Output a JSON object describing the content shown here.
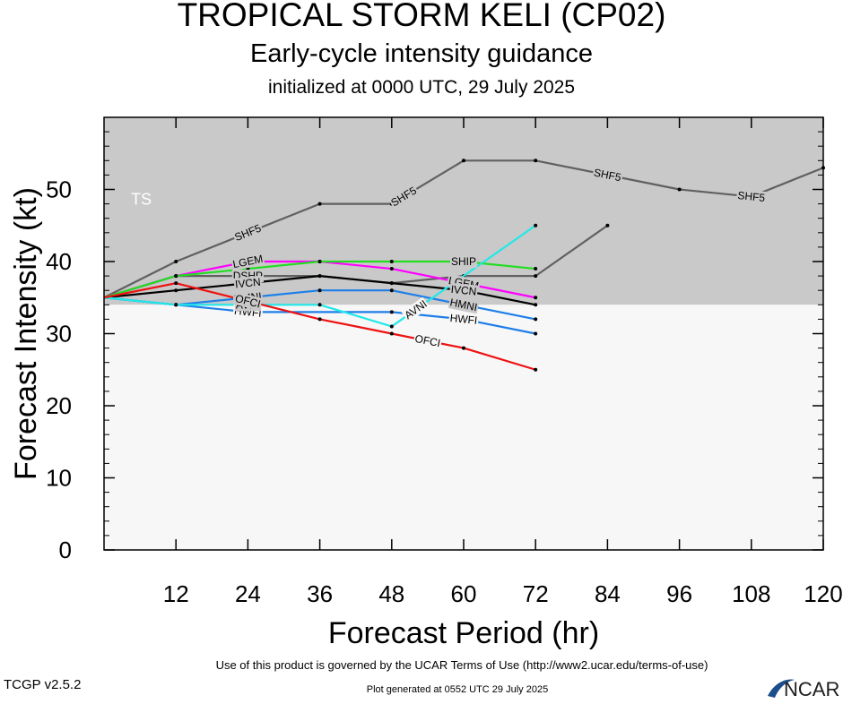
{
  "header": {
    "title": "TROPICAL STORM KELI (CP02)",
    "subtitle": "Early-cycle intensity guidance",
    "init": "initialized at 0000 UTC, 29 July 2025"
  },
  "footer": {
    "terms": "Use of this product is governed by the UCAR Terms of Use (http://www2.ucar.edu/terms-of-use)",
    "version": "TCGP v2.5.2",
    "generated": "Plot generated at 0552 UTC   29 July 2025",
    "brand": "NCAR"
  },
  "chart_data": {
    "type": "line",
    "xlabel": "Forecast Period (hr)",
    "ylabel": "Forecast Intensity (kt)",
    "xlim": [
      0,
      120
    ],
    "ylim": [
      0,
      60
    ],
    "xticks": [
      12,
      24,
      36,
      48,
      60,
      72,
      84,
      96,
      108,
      120
    ],
    "yticks": [
      0,
      10,
      20,
      30,
      40,
      50
    ],
    "bands": [
      {
        "label": "TS",
        "from": 34,
        "to": 60,
        "color": "#c9c9c9"
      },
      {
        "label": "",
        "from": 0,
        "to": 34,
        "color": "#f7f7f7"
      }
    ],
    "series": [
      {
        "name": "SHF5",
        "color": "#606060",
        "x": [
          0,
          12,
          36,
          48,
          60,
          72,
          96,
          108,
          120
        ],
        "values": [
          35,
          40,
          48,
          48,
          54,
          54,
          50,
          49,
          53
        ],
        "labels_at": [
          24,
          50,
          84,
          108
        ]
      },
      {
        "name": "DSHP",
        "color": "#606060",
        "x": [
          0,
          12,
          24,
          36,
          48,
          60,
          72,
          84
        ],
        "values": [
          35,
          38,
          38,
          38,
          37,
          38,
          38,
          45
        ],
        "labels_at": [
          24
        ]
      },
      {
        "name": "LGEM",
        "color": "#ff00ff",
        "x": [
          0,
          12,
          24,
          36,
          48,
          72
        ],
        "values": [
          35,
          38,
          40,
          40,
          39,
          35
        ],
        "labels_at": [
          24,
          60
        ]
      },
      {
        "name": "SHIP",
        "color": "#22dd22",
        "x": [
          0,
          12,
          24,
          36,
          48,
          60,
          72
        ],
        "values": [
          35,
          38,
          39,
          40,
          40,
          40,
          39
        ],
        "labels_at": [
          60
        ]
      },
      {
        "name": "IVCN",
        "color": "#000000",
        "x": [
          0,
          12,
          24,
          36,
          48,
          60,
          72
        ],
        "values": [
          35,
          36,
          37,
          38,
          37,
          36,
          34
        ],
        "labels_at": [
          24,
          60
        ]
      },
      {
        "name": "HMNI",
        "color": "#1e7fe8",
        "x": [
          0,
          12,
          24,
          36,
          48,
          60,
          72
        ],
        "values": [
          35,
          34,
          35,
          36,
          36,
          34,
          32
        ],
        "labels_at": [
          24,
          60
        ]
      },
      {
        "name": "HWFI",
        "color": "#1e7fe8",
        "x": [
          0,
          12,
          24,
          48,
          60,
          72
        ],
        "values": [
          35,
          34,
          33,
          33,
          32,
          30
        ],
        "labels_at": [
          24,
          60
        ]
      },
      {
        "name": "AVNI",
        "color": "#22e8e8",
        "x": [
          0,
          12,
          24,
          36,
          48,
          72
        ],
        "values": [
          35,
          34,
          34,
          34,
          31,
          45
        ],
        "labels_at": [
          24,
          52
        ]
      },
      {
        "name": "OFCI",
        "color": "#ee1111",
        "x": [
          0,
          12,
          36,
          48,
          60,
          72
        ],
        "values": [
          35,
          37,
          32,
          30,
          28,
          25
        ],
        "labels_at": [
          24,
          54
        ]
      }
    ]
  }
}
